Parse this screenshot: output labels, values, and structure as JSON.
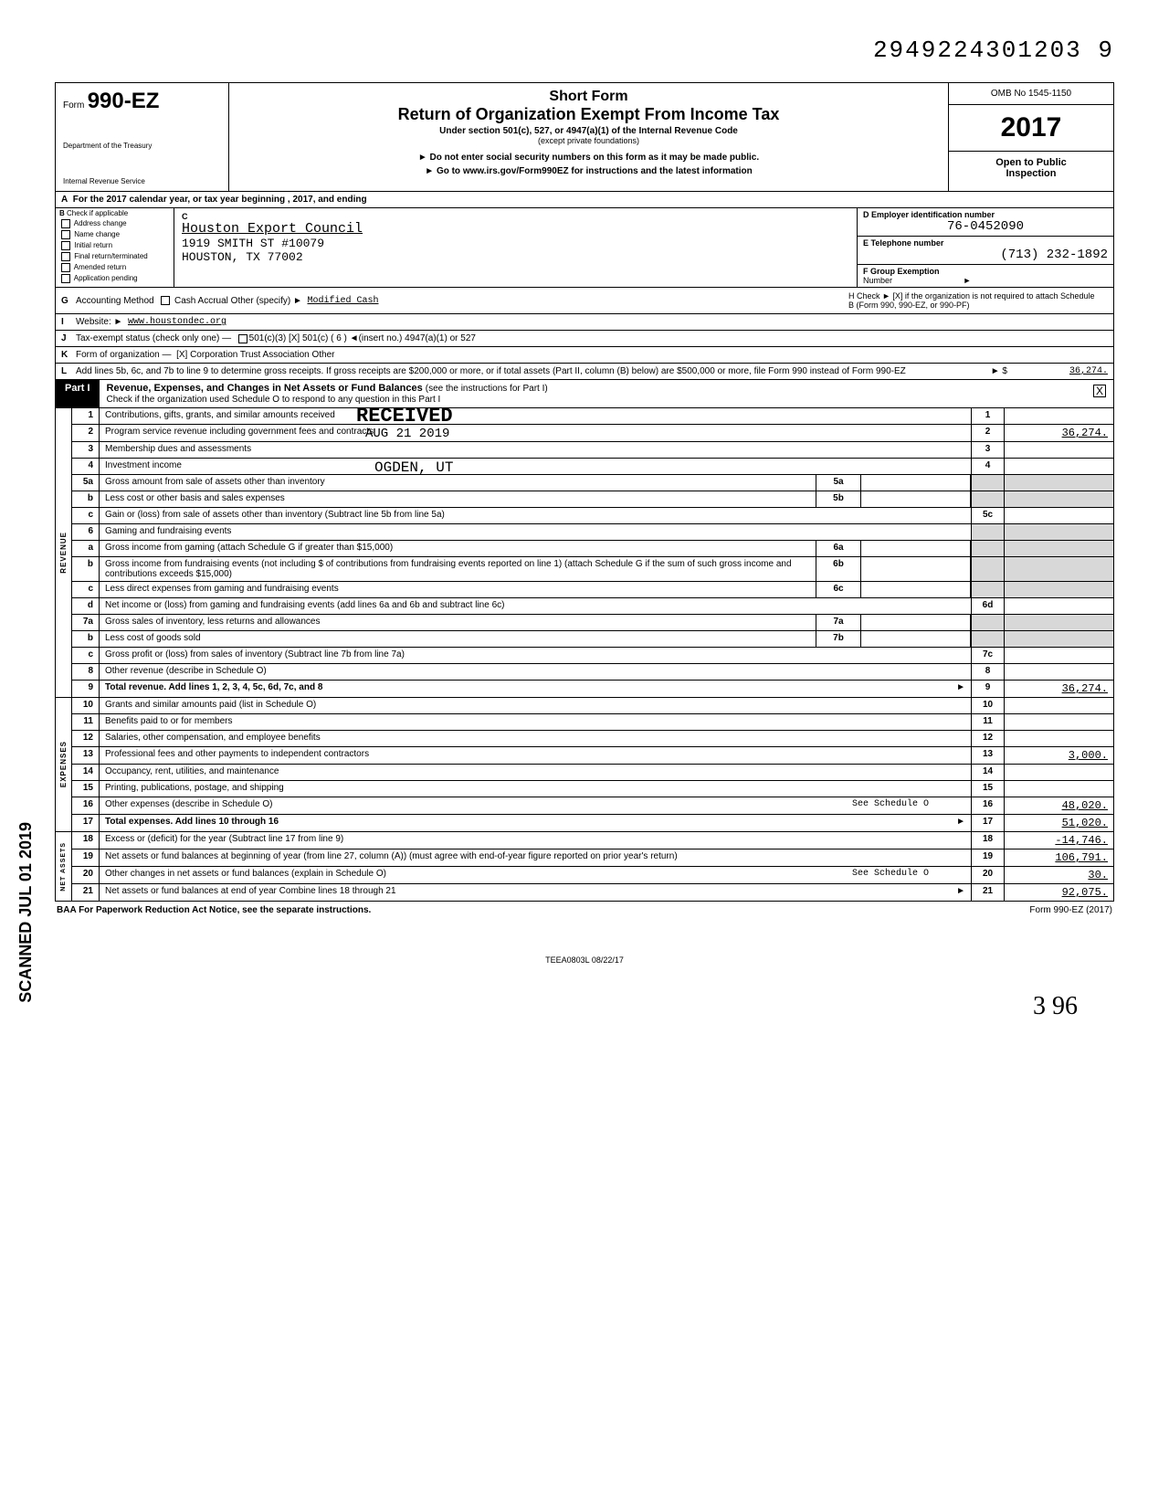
{
  "doc_number": "2949224301203 9",
  "form": {
    "form_label": "Form",
    "form_no": "990-EZ",
    "dept1": "Department of the Treasury",
    "dept2": "Internal Revenue Service",
    "short_form": "Short Form",
    "return_title": "Return of Organization Exempt From Income Tax",
    "sub1": "Under section 501(c), 527, or 4947(a)(1) of the Internal Revenue Code",
    "sub2": "(except private foundations)",
    "sub3": "► Do not enter social security numbers on this form as it may be made public.",
    "sub4": "► Go to www.irs.gov/Form990EZ for instructions and the latest information",
    "omb": "OMB No 1545-1150",
    "year": "2017",
    "open1": "Open to Public",
    "open2": "Inspection"
  },
  "line_a": "For the 2017 calendar year, or tax year beginning                                          , 2017, and ending",
  "col_b_hdr": "Check if applicable",
  "col_b": [
    "Address change",
    "Name change",
    "Initial return",
    "Final return/terminated",
    "Amended return",
    "Application pending"
  ],
  "col_c_lbl": "C",
  "org_name": "Houston Export Council",
  "addr1": "1919 SMITH ST #10079",
  "addr2": "HOUSTON, TX 77002",
  "d_lbl": "D  Employer identification number",
  "d_val": "76-0452090",
  "e_lbl": "E  Telephone number",
  "e_val": "(713) 232-1892",
  "f_lbl": "F  Group Exemption",
  "f_lbl2": "Number",
  "g": {
    "ltr": "G",
    "txt": "Accounting Method",
    "opts": "Cash        Accrual    Other (specify) ►",
    "val": "Modified Cash"
  },
  "h": "H  Check ► [X] if the organization is not required to attach Schedule B (Form 990, 990-EZ, or 990-PF)",
  "i": {
    "ltr": "I",
    "txt": "Website: ►",
    "val": "www.houstondec.org"
  },
  "j": {
    "ltr": "J",
    "txt": "Tax-exempt status (check only one) —",
    "opts": "501(c)(3)      [X] 501(c) ( 6 ) ◄(insert no.)      4947(a)(1) or      527"
  },
  "k": {
    "ltr": "K",
    "txt": "Form of organization —",
    "opts": "[X] Corporation       Trust       Association       Other"
  },
  "l": {
    "ltr": "L",
    "txt": "Add lines 5b, 6c, and 7b to line 9 to determine gross receipts. If gross receipts are $200,000 or more, or if total assets (Part II, column (B) below) are $500,000 or more, file Form 990 instead of Form 990-EZ",
    "arrow": "► $",
    "val": "36,274."
  },
  "part1": {
    "lbl": "Part I",
    "title": "Revenue, Expenses, and Changes in Net Assets or Fund Balances",
    "sub": "(see the instructions for Part I)",
    "check": "Check if the organization used Schedule O to respond to any question in this Part I",
    "check_mark": "X"
  },
  "stamp": {
    "received": "RECEIVED",
    "date": "AUG 21 2019",
    "ogden": "OGDEN, UT"
  },
  "scanned": "SCANNED JUL 01 2019",
  "rows": [
    {
      "n": "1",
      "d": "Contributions, gifts, grants, and similar amounts received",
      "r": "1",
      "a": ""
    },
    {
      "n": "2",
      "d": "Program service revenue including government fees and contracts",
      "r": "2",
      "a": "36,274."
    },
    {
      "n": "3",
      "d": "Membership dues and assessments",
      "r": "3",
      "a": ""
    },
    {
      "n": "4",
      "d": "Investment income",
      "r": "4",
      "a": ""
    },
    {
      "n": "5a",
      "d": "Gross amount from sale of assets other than inventory",
      "mid": "5a",
      "shade_r": true
    },
    {
      "n": "b",
      "d": "Less  cost or other basis and sales expenses",
      "mid": "5b",
      "shade_r": true
    },
    {
      "n": "c",
      "d": "Gain or (loss) from sale of assets other than inventory (Subtract line 5b from line 5a)",
      "r": "5c",
      "a": ""
    },
    {
      "n": "6",
      "d": "Gaming and fundraising events",
      "shade_r": true,
      "grey": true
    },
    {
      "n": "a",
      "d": "Gross income from gaming (attach Schedule G if greater than $15,000)",
      "mid": "6a",
      "shade_r": true
    },
    {
      "n": "b",
      "d": "Gross income from fundraising events (not including $                         of contributions from fundraising events reported on line 1) (attach Schedule G if the sum of such gross income and contributions exceeds $15,000)",
      "mid": "6b",
      "shade_r": true
    },
    {
      "n": "c",
      "d": "Less  direct expenses from gaming and fundraising events",
      "mid": "6c",
      "shade_r": true
    },
    {
      "n": "d",
      "d": "Net income or (loss) from gaming and fundraising events (add lines 6a and 6b and subtract line 6c)",
      "r": "6d",
      "a": ""
    },
    {
      "n": "7a",
      "d": "Gross sales of inventory, less returns and allowances",
      "mid": "7a",
      "shade_r": true
    },
    {
      "n": "b",
      "d": "Less  cost of goods sold",
      "mid": "7b",
      "shade_r": true
    },
    {
      "n": "c",
      "d": "Gross profit or (loss) from sales of inventory (Subtract line 7b from line 7a)",
      "r": "7c",
      "a": ""
    },
    {
      "n": "8",
      "d": "Other revenue (describe in Schedule O)",
      "r": "8",
      "a": ""
    },
    {
      "n": "9",
      "d": "Total revenue. Add lines 1, 2, 3, 4, 5c, 6d, 7c, and 8",
      "r": "9",
      "a": "36,274.",
      "bold": true,
      "arrow": true
    }
  ],
  "side_rev": "REVENUE",
  "exp_rows": [
    {
      "n": "10",
      "d": "Grants and similar amounts paid (list in Schedule O)",
      "r": "10",
      "a": ""
    },
    {
      "n": "11",
      "d": "Benefits paid to or for members",
      "r": "11",
      "a": ""
    },
    {
      "n": "12",
      "d": "Salaries, other compensation, and employee benefits",
      "r": "12",
      "a": ""
    },
    {
      "n": "13",
      "d": "Professional fees and other payments to independent contractors",
      "r": "13",
      "a": "3,000."
    },
    {
      "n": "14",
      "d": "Occupancy, rent, utilities, and maintenance",
      "r": "14",
      "a": ""
    },
    {
      "n": "15",
      "d": "Printing, publications, postage, and shipping",
      "r": "15",
      "a": ""
    },
    {
      "n": "16",
      "d": "Other expenses (describe in Schedule O)",
      "extra": "See Schedule O",
      "r": "16",
      "a": "48,020."
    },
    {
      "n": "17",
      "d": "Total expenses. Add lines 10 through 16",
      "r": "17",
      "a": "51,020.",
      "bold": true,
      "arrow": true
    }
  ],
  "side_exp": "EXPENSES",
  "na_rows": [
    {
      "n": "18",
      "d": "Excess or (deficit) for the year (Subtract line 17 from line 9)",
      "r": "18",
      "a": "-14,746."
    },
    {
      "n": "19",
      "d": "Net assets or fund balances at beginning of year (from line 27, column (A)) (must agree with end-of-year figure reported on prior year's return)",
      "r": "19",
      "a": "106,791."
    },
    {
      "n": "20",
      "d": "Other changes in net assets or fund balances (explain in Schedule O)",
      "extra": "See Schedule O",
      "r": "20",
      "a": "30."
    },
    {
      "n": "21",
      "d": "Net assets or fund balances at end of year  Combine lines 18 through 21",
      "r": "21",
      "a": "92,075.",
      "arrow": true
    }
  ],
  "side_na": "NET ASSETS",
  "footer_l": "BAA  For Paperwork Reduction Act Notice, see the separate instructions.",
  "footer_r": "Form 990-EZ (2017)",
  "tee": "TEEA0803L  08/22/17",
  "hand": "3     96"
}
